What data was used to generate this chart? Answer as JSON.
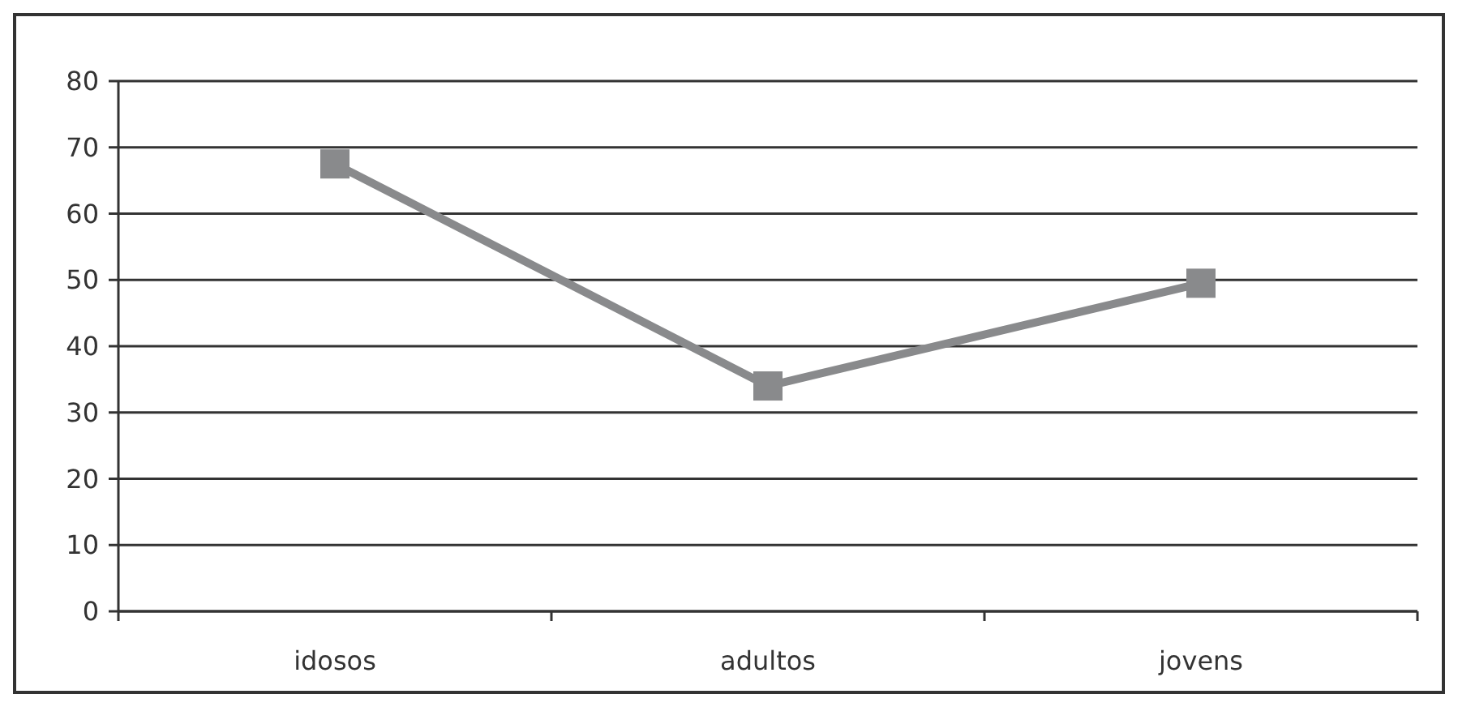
{
  "chart_data": {
    "type": "line",
    "categories": [
      "idosos",
      "adultos",
      "jovens"
    ],
    "series": [
      {
        "color": "#898a8c",
        "values": [
          67.5,
          34,
          49.5
        ]
      }
    ],
    "ylim": [
      0,
      80
    ],
    "yticks": [
      0,
      10,
      20,
      30,
      40,
      50,
      60,
      70,
      80
    ],
    "grid": "y",
    "marker": "square",
    "line_style": "solid"
  }
}
